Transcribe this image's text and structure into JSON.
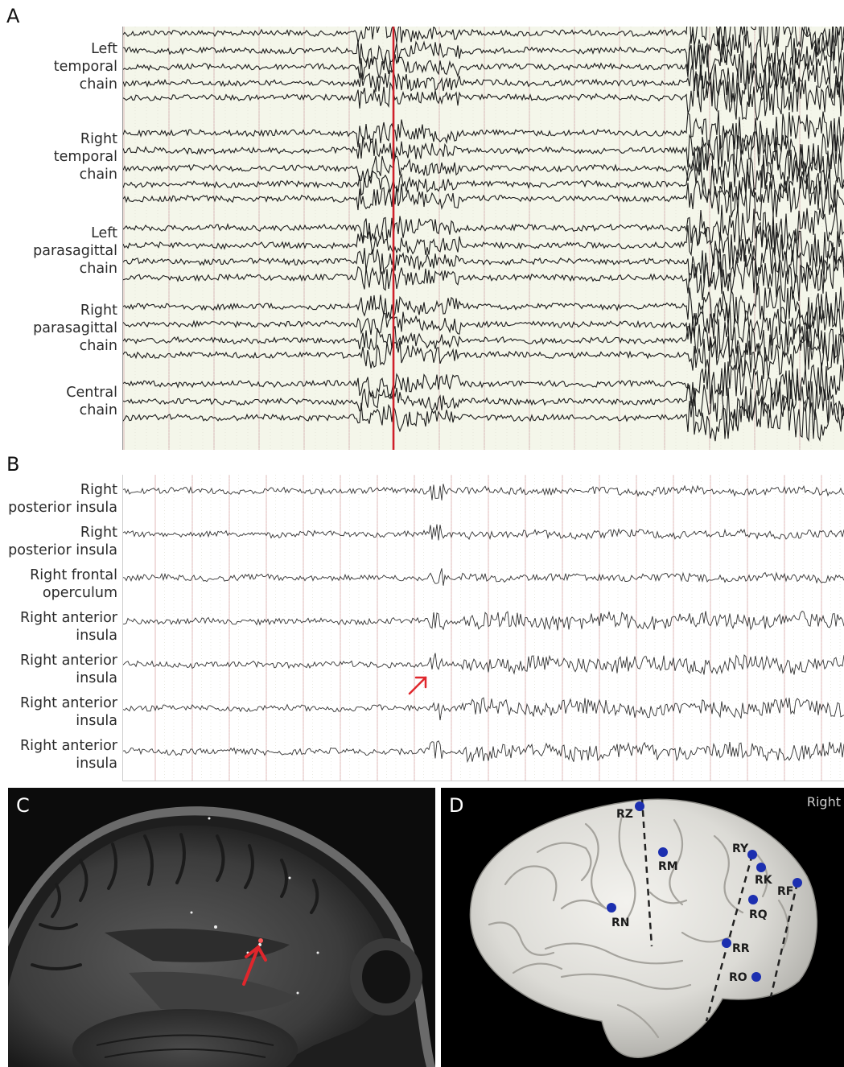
{
  "panels": {
    "a": {
      "letter": "A",
      "labels": [
        "Left\ntemporal\nchain",
        "Right\ntemporal\nchain",
        "Left\nparasagittal\nchain",
        "Right\nparasagittal\nchain",
        "Central\nchain"
      ]
    },
    "b": {
      "letter": "B",
      "labels": [
        "Right\nposterior insula",
        "Right\nposterior insula",
        "Right frontal\noperculum",
        "Right anterior\ninsula",
        "Right anterior\ninsula",
        "Right anterior\ninsula",
        "Right anterior\ninsula"
      ]
    },
    "c": {
      "letter": "C"
    },
    "d": {
      "letter": "D",
      "side_label": "Right",
      "electrodes": [
        "RZ",
        "RM",
        "RN",
        "RY",
        "RK",
        "RF",
        "RQ",
        "RR",
        "RO"
      ]
    }
  },
  "colors": {
    "eeg_background": "#f4f6ea",
    "grid_line": "#d9b8b8",
    "onset_marker": "#d0202a",
    "arrow": "#e0262c",
    "electrode": "#1c2fb0"
  }
}
